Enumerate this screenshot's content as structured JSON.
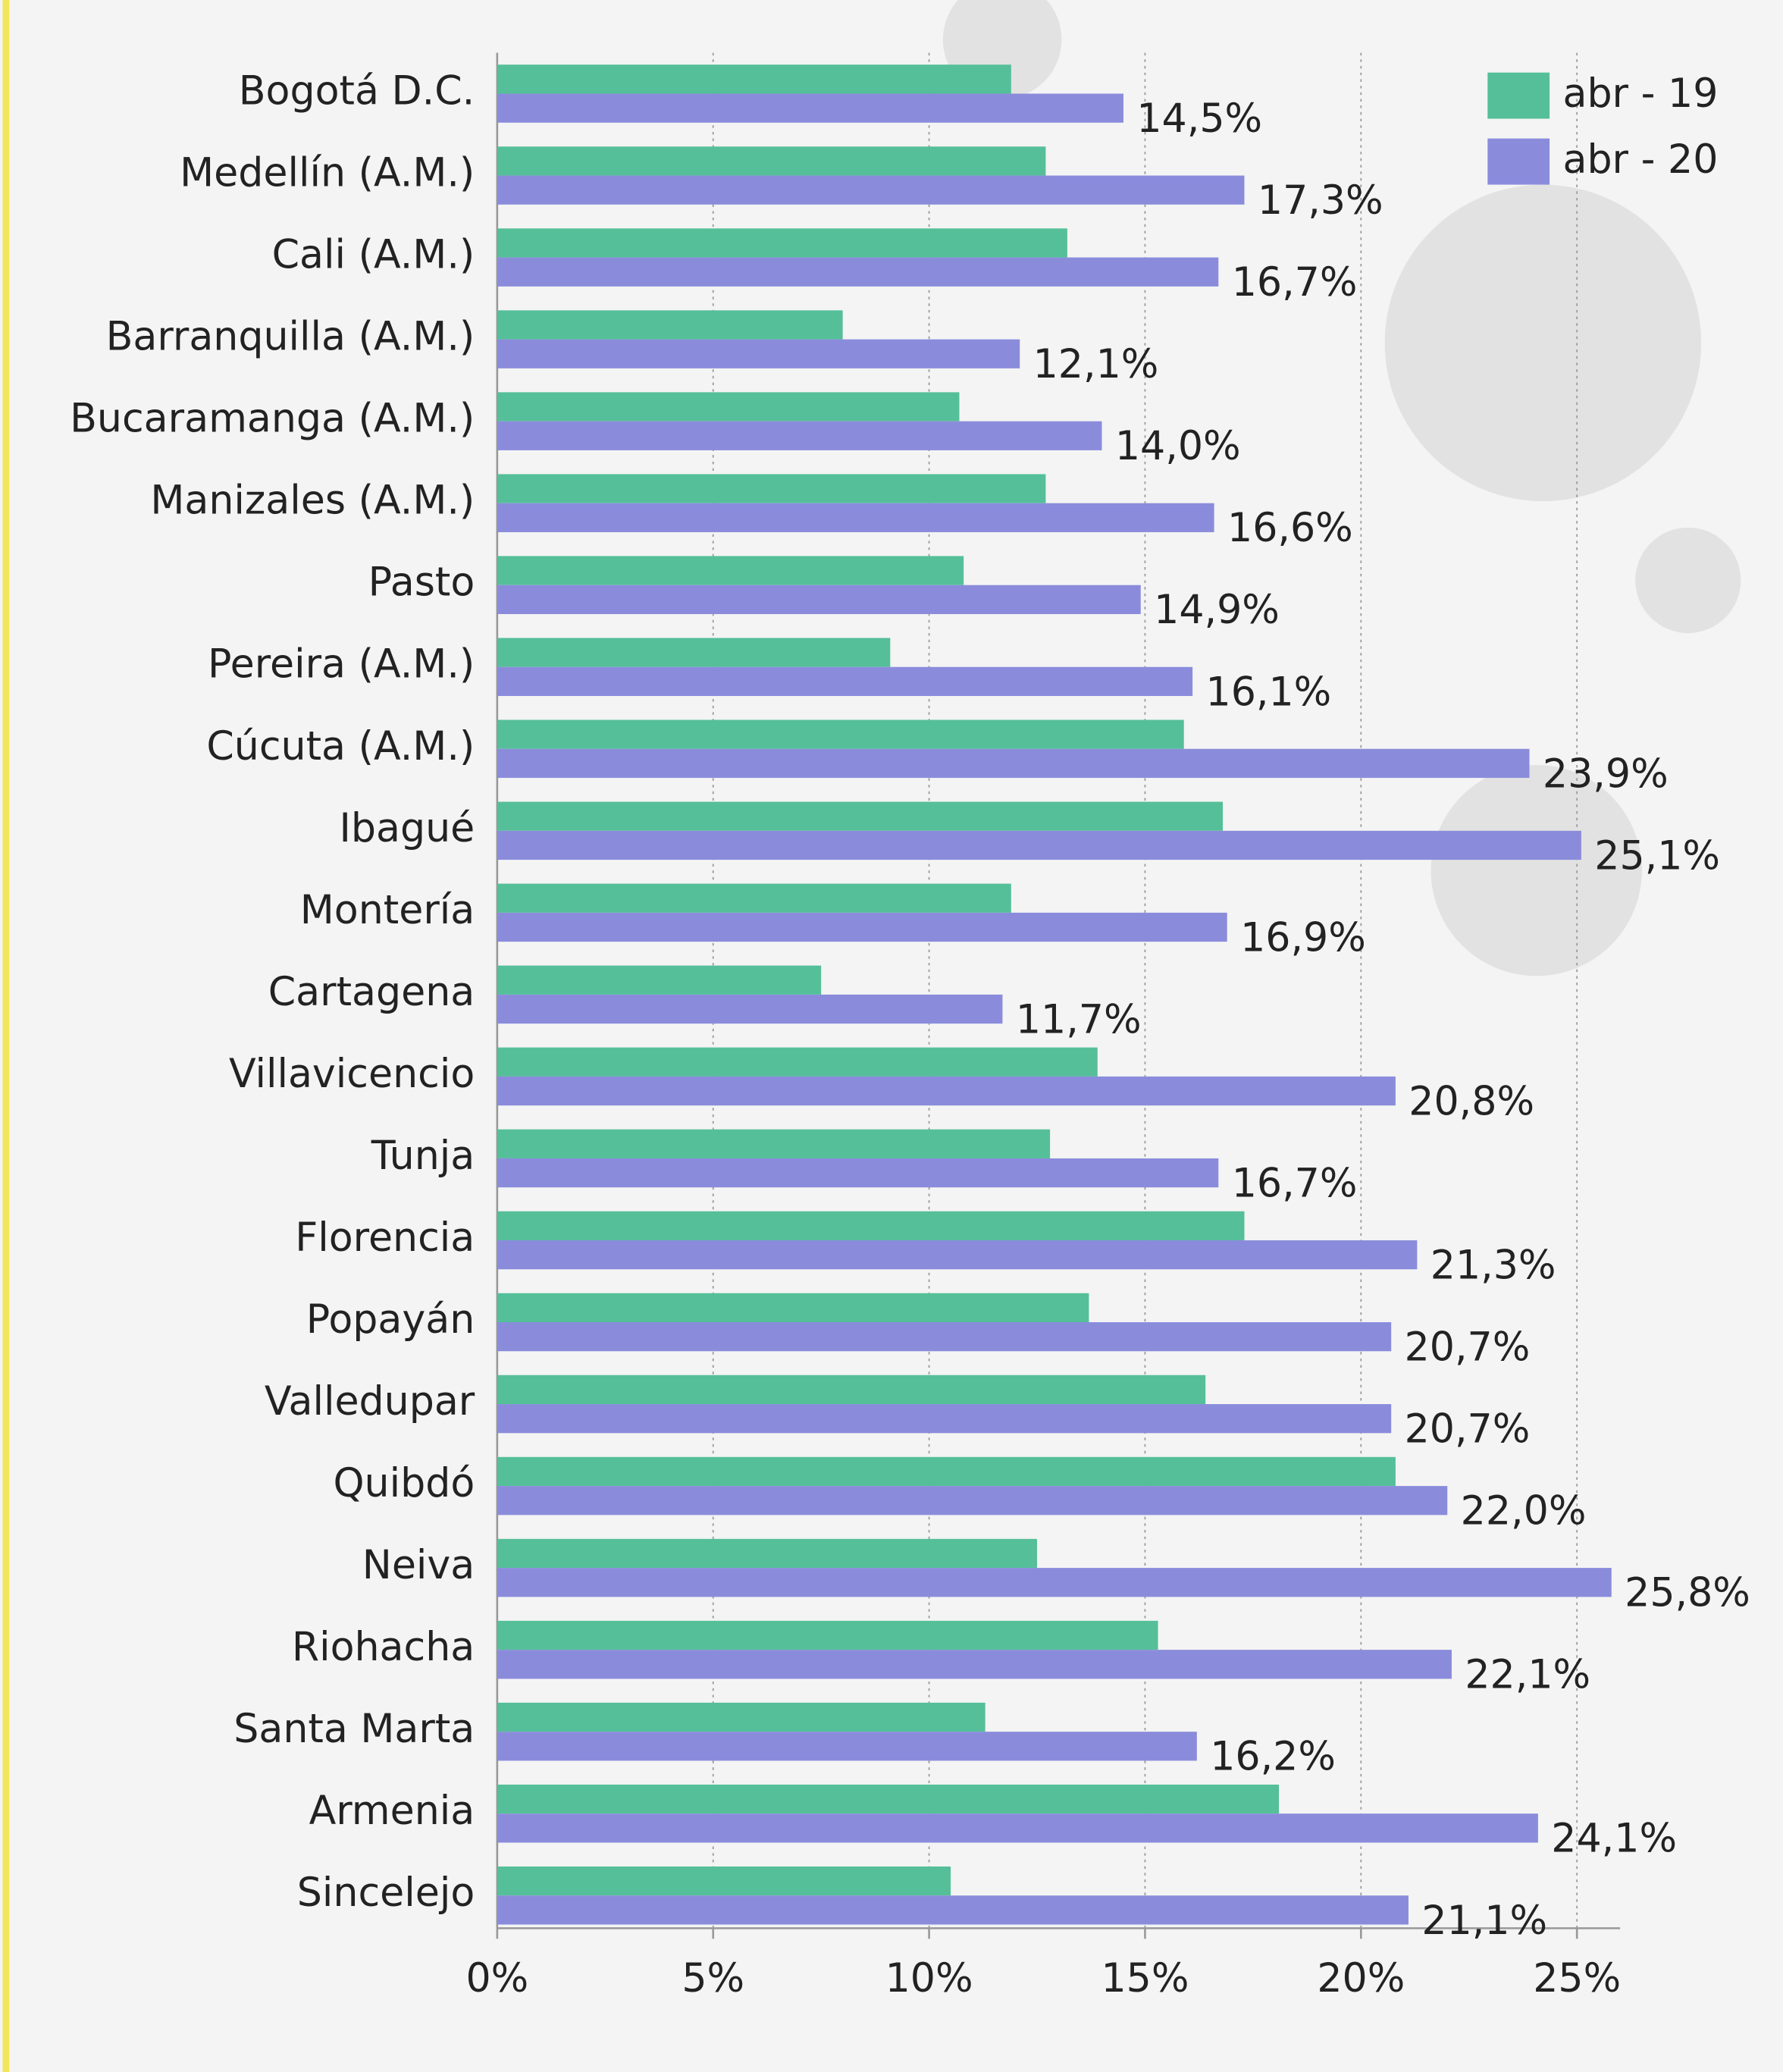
{
  "chart_data": {
    "type": "barh",
    "categories": [
      "Bogotá D.C.",
      "Medellín (A.M.)",
      "Cali (A.M.)",
      "Barranquilla (A.M.)",
      "Bucaramanga (A.M.)",
      "Manizales (A.M.)",
      "Pasto",
      "Pereira (A.M.)",
      "Cúcuta (A.M.)",
      "Ibagué",
      "Montería",
      "Cartagena",
      "Villavicencio",
      "Tunja",
      "Florencia",
      "Popayán",
      "Valledupar",
      "Quibdó",
      "Neiva",
      "Riohacha",
      "Santa Marta",
      "Armenia",
      "Sincelejo"
    ],
    "series": [
      {
        "name": "abr - 19",
        "color": "#55bf99",
        "values": [
          11.9,
          12.7,
          13.2,
          8.0,
          10.7,
          12.7,
          10.8,
          9.1,
          15.9,
          16.8,
          11.9,
          7.5,
          13.9,
          12.8,
          17.3,
          13.7,
          16.4,
          20.8,
          12.5,
          15.3,
          11.3,
          18.1,
          10.5
        ]
      },
      {
        "name": "abr - 20",
        "color": "#8a8cdb",
        "values": [
          14.5,
          17.3,
          16.7,
          12.1,
          14.0,
          16.6,
          14.9,
          16.1,
          23.9,
          25.1,
          16.9,
          11.7,
          20.8,
          16.7,
          21.3,
          20.7,
          20.7,
          22.0,
          25.8,
          22.1,
          16.2,
          24.1,
          21.1
        ],
        "value_labels": [
          "14,5%",
          "17,3%",
          "16,7%",
          "12,1%",
          "14,0%",
          "16,6%",
          "14,9%",
          "16,1%",
          "23,9%",
          "25,1%",
          "16,9%",
          "11,7%",
          "20,8%",
          "16,7%",
          "21,3%",
          "20,7%",
          "20,7%",
          "22,0%",
          "25,8%",
          "22,1%",
          "16,2%",
          "24,1%",
          "21,1%"
        ]
      }
    ],
    "xlim": [
      0,
      26
    ],
    "xticks": [
      {
        "value": 0,
        "label": "0%"
      },
      {
        "value": 5,
        "label": "5%"
      },
      {
        "value": 10,
        "label": "10%"
      },
      {
        "value": 15,
        "label": "15%"
      },
      {
        "value": 20,
        "label": "20%"
      },
      {
        "value": 25,
        "label": "25%"
      }
    ],
    "grid": true,
    "legend": "top-right"
  }
}
